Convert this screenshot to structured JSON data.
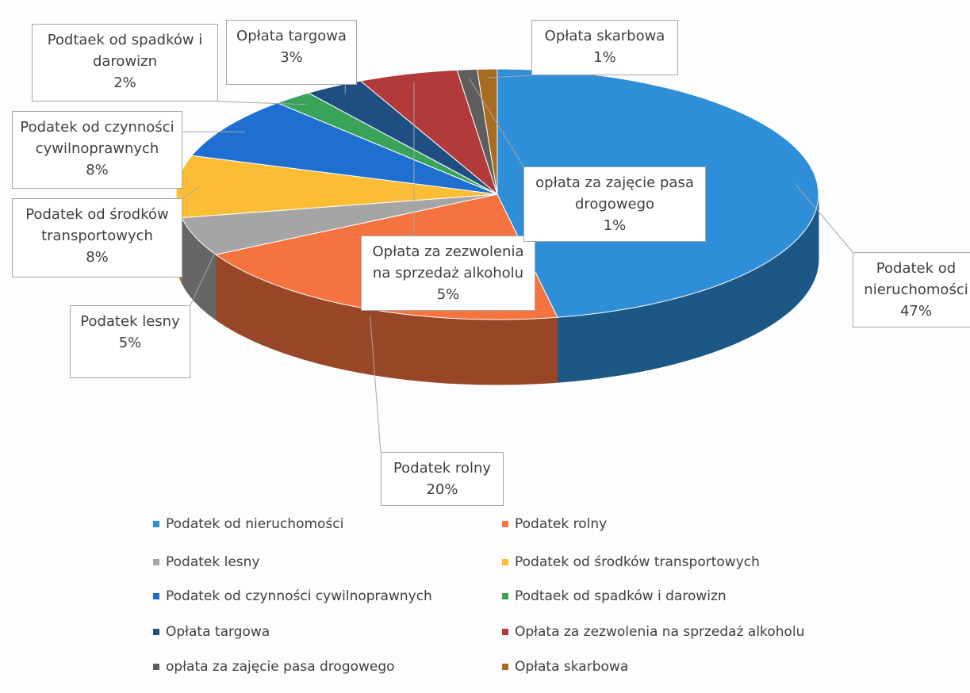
{
  "chart_data": {
    "type": "pie",
    "categories": [
      "Podatek od nieruchomości",
      "Podatek rolny",
      "Podatek lesny",
      "Podatek od środków transportowych",
      "Podatek od czynności cywilnoprawnych",
      "Podtaek od spadków i darowizn",
      "Opłata targowa",
      "Opłata za zezwolenia na sprzedaż alkoholu",
      "opłata za zajęcie pasa drogowego",
      "Opłata skarbowa"
    ],
    "values": [
      47,
      20,
      5,
      8,
      8,
      2,
      3,
      5,
      1,
      1
    ],
    "value_labels": [
      "47%",
      "20%",
      "5%",
      "8%",
      "8%",
      "2%",
      "3%",
      "5%",
      "1%",
      "1%"
    ],
    "colors": [
      "#2e8fd8",
      "#f4733e",
      "#a5a5a5",
      "#fbbd33",
      "#1f6fd1",
      "#3aa35a",
      "#1f4f82",
      "#b33a3a",
      "#5e5e5e",
      "#a86c20"
    ],
    "legend": "bottom"
  }
}
